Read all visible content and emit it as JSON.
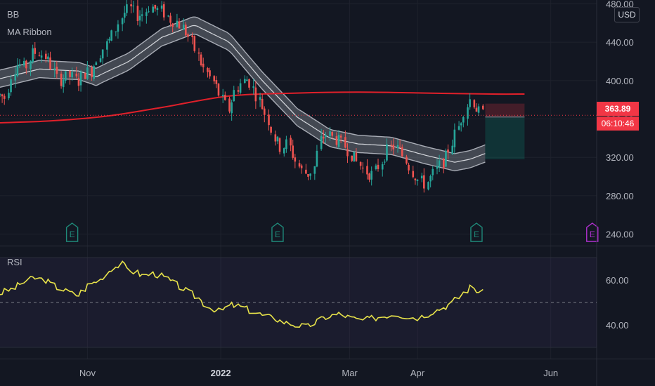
{
  "indicators": {
    "bb": "BB",
    "ma_ribbon": "MA Ribbon",
    "rsi": "RSI"
  },
  "currency": "USD",
  "current_price": "363.89",
  "countdown": "06:10:46",
  "earnings_marker": "E",
  "colors": {
    "background": "#131722",
    "up": "#26a69a",
    "down": "#ef5350",
    "ma200": "#e0202a",
    "rsi_line": "#e8e34a",
    "bb_band": "#9ea3ad"
  },
  "chart_data": [
    {
      "type": "candlestick",
      "title": "",
      "yticks": [
        "480.00",
        "440.00",
        "400.00",
        "360.00",
        "320.00",
        "280.00",
        "240.00"
      ],
      "ytick_values": [
        480,
        440,
        400,
        360,
        320,
        280,
        240
      ],
      "ylim": [
        228,
        484
      ],
      "xticks": [
        "Nov",
        "2022",
        "Mar",
        "Apr",
        "Jun"
      ],
      "x_range": [
        "2021-09-22",
        "2022-06-22"
      ],
      "xtick_dates": [
        "2021-11-01",
        "2022-01-01",
        "2022-03-01",
        "2022-04-01",
        "2022-06-01"
      ],
      "close_series": [
        [
          "2021-09-22",
          385
        ],
        [
          "2021-09-25",
          382
        ],
        [
          "2021-09-28",
          410
        ],
        [
          "2021-10-01",
          418
        ],
        [
          "2021-10-04",
          412
        ],
        [
          "2021-10-07",
          428
        ],
        [
          "2021-10-10",
          430
        ],
        [
          "2021-10-13",
          425
        ],
        [
          "2021-10-16",
          415
        ],
        [
          "2021-10-19",
          400
        ],
        [
          "2021-10-22",
          403
        ],
        [
          "2021-10-25",
          405
        ],
        [
          "2021-10-28",
          398
        ],
        [
          "2021-10-31",
          408
        ],
        [
          "2021-11-03",
          410
        ],
        [
          "2021-11-06",
          425
        ],
        [
          "2021-11-09",
          435
        ],
        [
          "2021-11-12",
          443
        ],
        [
          "2021-11-15",
          458
        ],
        [
          "2021-11-18",
          470
        ],
        [
          "2021-11-21",
          475
        ],
        [
          "2021-11-24",
          468
        ],
        [
          "2021-11-27",
          470
        ],
        [
          "2021-11-30",
          478
        ],
        [
          "2021-12-03",
          474
        ],
        [
          "2021-12-06",
          472
        ],
        [
          "2021-12-09",
          464
        ],
        [
          "2021-12-12",
          462
        ],
        [
          "2021-12-15",
          455
        ],
        [
          "2021-12-18",
          445
        ],
        [
          "2021-12-21",
          430
        ],
        [
          "2021-12-24",
          415
        ],
        [
          "2021-12-27",
          405
        ],
        [
          "2021-12-30",
          395
        ],
        [
          "2022-01-02",
          380
        ],
        [
          "2022-01-05",
          370
        ],
        [
          "2022-01-08",
          390
        ],
        [
          "2022-01-11",
          398
        ],
        [
          "2022-01-14",
          402
        ],
        [
          "2022-01-17",
          388
        ],
        [
          "2022-01-20",
          375
        ],
        [
          "2022-01-23",
          360
        ],
        [
          "2022-01-26",
          340
        ],
        [
          "2022-01-29",
          330
        ],
        [
          "2022-02-01",
          335
        ],
        [
          "2022-02-04",
          320
        ],
        [
          "2022-02-07",
          307
        ],
        [
          "2022-02-10",
          302
        ],
        [
          "2022-02-13",
          308
        ],
        [
          "2022-02-16",
          338
        ],
        [
          "2022-02-19",
          345
        ],
        [
          "2022-02-22",
          340
        ],
        [
          "2022-02-25",
          336
        ],
        [
          "2022-02-28",
          330
        ],
        [
          "2022-03-03",
          320
        ],
        [
          "2022-03-06",
          312
        ],
        [
          "2022-03-09",
          305
        ],
        [
          "2022-03-12",
          302
        ],
        [
          "2022-03-15",
          312
        ],
        [
          "2022-03-18",
          325
        ],
        [
          "2022-03-21",
          332
        ],
        [
          "2022-03-24",
          328
        ],
        [
          "2022-03-27",
          318
        ],
        [
          "2022-03-30",
          305
        ],
        [
          "2022-04-02",
          296
        ],
        [
          "2022-04-05",
          292
        ],
        [
          "2022-04-08",
          300
        ],
        [
          "2022-04-11",
          310
        ],
        [
          "2022-04-14",
          318
        ],
        [
          "2022-04-17",
          335
        ],
        [
          "2022-04-20",
          352
        ],
        [
          "2022-04-23",
          370
        ],
        [
          "2022-04-26",
          382
        ],
        [
          "2022-04-29",
          368
        ],
        [
          "2022-05-02",
          364
        ]
      ],
      "ma_ribbon_center": [
        [
          "2021-09-22",
          402
        ],
        [
          "2021-10-10",
          412
        ],
        [
          "2021-10-28",
          410
        ],
        [
          "2021-11-05",
          404
        ],
        [
          "2021-11-20",
          420
        ],
        [
          "2021-12-05",
          445
        ],
        [
          "2021-12-20",
          458
        ],
        [
          "2022-01-05",
          440
        ],
        [
          "2022-01-20",
          400
        ],
        [
          "2022-02-05",
          362
        ],
        [
          "2022-02-20",
          340
        ],
        [
          "2022-03-05",
          334
        ],
        [
          "2022-03-20",
          332
        ],
        [
          "2022-04-05",
          322
        ],
        [
          "2022-04-18",
          315
        ],
        [
          "2022-04-25",
          318
        ],
        [
          "2022-05-02",
          324
        ]
      ],
      "ma200": [
        [
          "2021-09-22",
          356
        ],
        [
          "2021-10-15",
          358
        ],
        [
          "2021-11-10",
          363
        ],
        [
          "2021-12-05",
          372
        ],
        [
          "2022-01-05",
          384
        ],
        [
          "2022-02-05",
          387
        ],
        [
          "2022-03-05",
          388
        ],
        [
          "2022-04-05",
          387
        ],
        [
          "2022-05-05",
          386
        ],
        [
          "2022-05-20",
          386
        ]
      ],
      "position_box": {
        "start": "2022-05-02",
        "end": "2022-05-20",
        "entry": 362,
        "stop": 376,
        "target": 318
      },
      "earnings_dates": [
        "2021-10-25",
        "2022-01-27",
        "2022-04-28",
        "2022-06-20"
      ]
    },
    {
      "type": "line",
      "title": "RSI",
      "yticks": [
        "60.00",
        "40.00"
      ],
      "ytick_values": [
        60,
        40
      ],
      "ylim": [
        25,
        75
      ],
      "band": [
        30,
        70
      ],
      "midline": 50,
      "series": [
        [
          "2021-09-22",
          54
        ],
        [
          "2021-09-28",
          56
        ],
        [
          "2021-10-03",
          59
        ],
        [
          "2021-10-08",
          61
        ],
        [
          "2021-10-13",
          60
        ],
        [
          "2021-10-18",
          57
        ],
        [
          "2021-10-23",
          55
        ],
        [
          "2021-10-28",
          53
        ],
        [
          "2021-11-02",
          58
        ],
        [
          "2021-11-07",
          60
        ],
        [
          "2021-11-12",
          65
        ],
        [
          "2021-11-17",
          67
        ],
        [
          "2021-11-22",
          64
        ],
        [
          "2021-11-27",
          62
        ],
        [
          "2021-12-02",
          63
        ],
        [
          "2021-12-07",
          61
        ],
        [
          "2021-12-12",
          58
        ],
        [
          "2021-12-17",
          55
        ],
        [
          "2021-12-22",
          52
        ],
        [
          "2021-12-27",
          48
        ],
        [
          "2022-01-01",
          46
        ],
        [
          "2022-01-06",
          49
        ],
        [
          "2022-01-11",
          48
        ],
        [
          "2022-01-16",
          46
        ],
        [
          "2022-01-21",
          44
        ],
        [
          "2022-01-26",
          43
        ],
        [
          "2022-01-31",
          41
        ],
        [
          "2022-02-05",
          40
        ],
        [
          "2022-02-10",
          39
        ],
        [
          "2022-02-15",
          42
        ],
        [
          "2022-02-20",
          44
        ],
        [
          "2022-02-25",
          45
        ],
        [
          "2022-03-02",
          43
        ],
        [
          "2022-03-07",
          42
        ],
        [
          "2022-03-12",
          43
        ],
        [
          "2022-03-17",
          44
        ],
        [
          "2022-03-22",
          45
        ],
        [
          "2022-03-27",
          44
        ],
        [
          "2022-04-01",
          43
        ],
        [
          "2022-04-06",
          45
        ],
        [
          "2022-04-11",
          47
        ],
        [
          "2022-04-16",
          49
        ],
        [
          "2022-04-21",
          53
        ],
        [
          "2022-04-26",
          57
        ],
        [
          "2022-04-29",
          55
        ],
        [
          "2022-05-02",
          54
        ]
      ]
    }
  ]
}
